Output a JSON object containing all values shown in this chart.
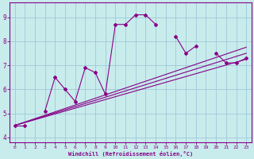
{
  "xlabel": "Windchill (Refroidissement éolien,°C)",
  "background_color": "#c8ecec",
  "grid_color": "#a0c8d8",
  "line_color": "#880088",
  "y_main": [
    4.5,
    4.5,
    5.1,
    6.5,
    6.0,
    5.5,
    6.9,
    6.7,
    5.8,
    8.7,
    8.7,
    9.1,
    9.1,
    8.7,
    8.2,
    7.5,
    7.8,
    7.5,
    7.1,
    7.1,
    7.3
  ],
  "x_main_all": [
    0,
    1,
    2,
    3,
    4,
    5,
    6,
    7,
    8,
    9,
    10,
    11,
    12,
    13,
    14,
    15,
    16,
    17,
    18,
    19,
    20,
    21,
    22,
    23
  ],
  "y_main_all": [
    4.5,
    4.5,
    null,
    5.1,
    6.5,
    6.0,
    5.5,
    6.9,
    6.7,
    5.8,
    8.7,
    8.7,
    9.1,
    9.1,
    8.7,
    null,
    8.2,
    7.5,
    7.8,
    null,
    7.5,
    7.1,
    7.1,
    7.3
  ],
  "reg_lines": [
    {
      "x0": 0,
      "y0": 4.5,
      "x1": 23,
      "y1": 7.25
    },
    {
      "x0": 0,
      "y0": 4.5,
      "x1": 23,
      "y1": 7.5
    },
    {
      "x0": 0,
      "y0": 4.5,
      "x1": 23,
      "y1": 7.75
    }
  ],
  "xlim": [
    -0.5,
    23.5
  ],
  "ylim": [
    3.8,
    9.6
  ],
  "yticks": [
    4,
    5,
    6,
    7,
    8,
    9
  ],
  "xticks": [
    0,
    1,
    2,
    3,
    4,
    5,
    6,
    7,
    8,
    9,
    10,
    11,
    12,
    13,
    14,
    15,
    16,
    17,
    18,
    19,
    20,
    21,
    22,
    23
  ]
}
